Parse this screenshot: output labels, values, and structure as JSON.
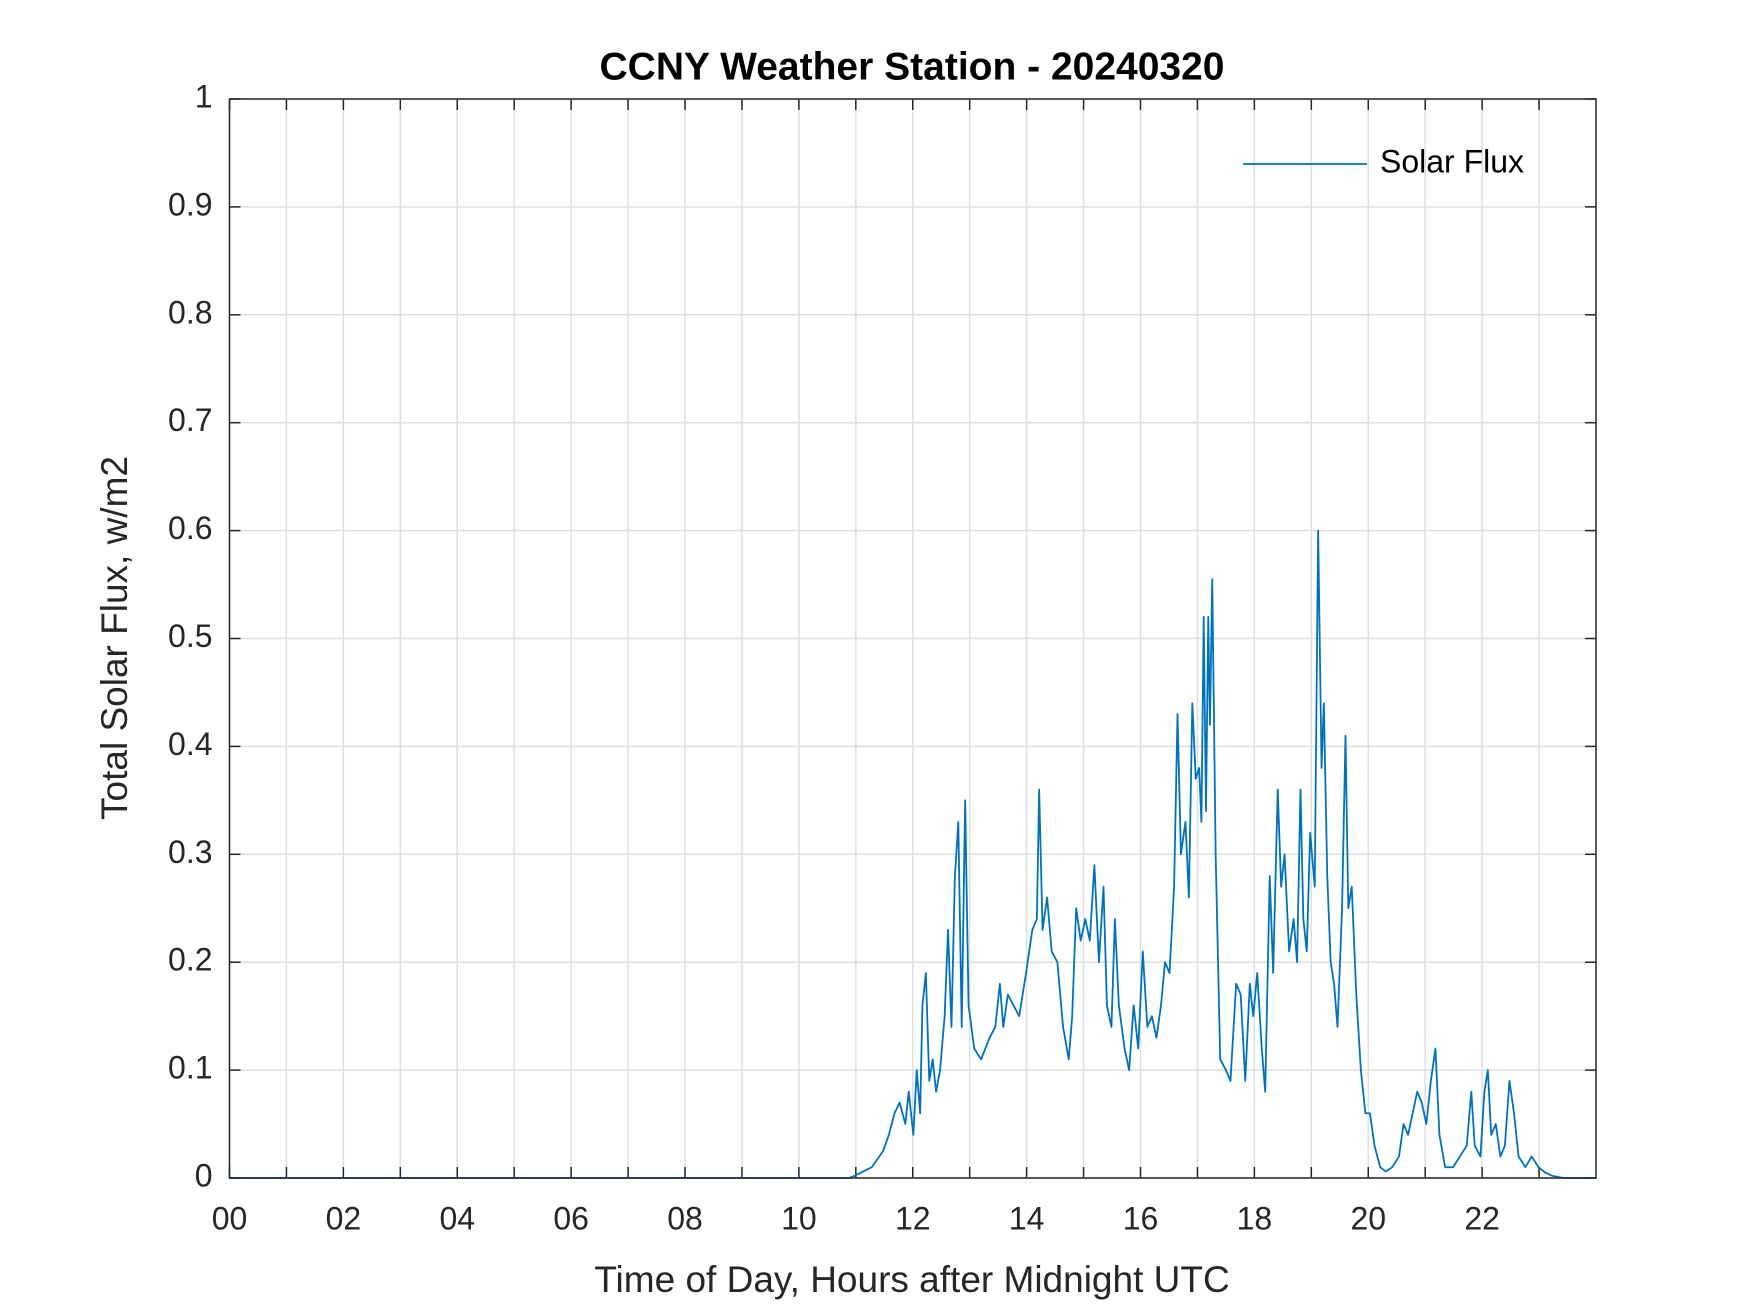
{
  "chart_data": {
    "type": "line",
    "title": "CCNY Weather Station - 20240320",
    "x_label": "Time of Day, Hours after Midnight UTC",
    "y_label": "Total Solar Flux, w/m2",
    "xlim": [
      0,
      24
    ],
    "xticks": [
      {
        "value": 0,
        "label": "00"
      },
      {
        "value": 2,
        "label": "02"
      },
      {
        "value": 4,
        "label": "04"
      },
      {
        "value": 6,
        "label": "06"
      },
      {
        "value": 8,
        "label": "08"
      },
      {
        "value": 10,
        "label": "10"
      },
      {
        "value": 12,
        "label": "12"
      },
      {
        "value": 14,
        "label": "14"
      },
      {
        "value": 16,
        "label": "16"
      },
      {
        "value": 18,
        "label": "18"
      },
      {
        "value": 20,
        "label": "20"
      },
      {
        "value": 22,
        "label": "22"
      }
    ],
    "xminorticks": [
      1,
      3,
      5,
      7,
      9,
      11,
      13,
      15,
      17,
      19,
      21,
      23
    ],
    "ylim": [
      0,
      1
    ],
    "yticks": [
      0,
      0.1,
      0.2,
      0.3,
      0.4,
      0.5,
      0.6,
      0.7,
      0.8,
      0.9,
      1
    ],
    "grid": true,
    "legend": "upper right",
    "x": [
      0,
      10.88,
      10.98,
      11.28,
      11.48,
      11.58,
      11.68,
      11.77,
      11.87,
      11.93,
      12.01,
      12.07,
      12.13,
      12.17,
      12.23,
      12.29,
      12.35,
      12.41,
      12.48,
      12.56,
      12.62,
      12.68,
      12.74,
      12.8,
      12.86,
      12.92,
      12.98,
      13.08,
      13.2,
      13.35,
      13.45,
      13.53,
      13.59,
      13.67,
      13.77,
      13.87,
      13.99,
      14.1,
      14.18,
      14.22,
      14.28,
      14.36,
      14.44,
      14.54,
      14.64,
      14.74,
      14.8,
      14.87,
      14.95,
      15.03,
      15.11,
      15.19,
      15.27,
      15.35,
      15.41,
      15.49,
      15.55,
      15.62,
      15.72,
      15.8,
      15.88,
      15.96,
      16.04,
      16.12,
      16.2,
      16.28,
      16.36,
      16.43,
      16.51,
      16.59,
      16.65,
      16.71,
      16.79,
      16.85,
      16.91,
      16.97,
      17.03,
      17.07,
      17.11,
      17.15,
      17.19,
      17.22,
      17.26,
      17.32,
      17.4,
      17.5,
      17.58,
      17.68,
      17.76,
      17.84,
      17.92,
      17.98,
      18.05,
      18.13,
      18.19,
      18.27,
      18.33,
      18.41,
      18.47,
      18.53,
      18.61,
      18.69,
      18.75,
      18.81,
      18.86,
      18.92,
      18.98,
      19.06,
      19.12,
      19.18,
      19.22,
      19.28,
      19.34,
      19.4,
      19.46,
      19.54,
      19.6,
      19.65,
      19.71,
      19.79,
      19.87,
      19.95,
      20.03,
      20.11,
      20.21,
      20.31,
      20.42,
      20.54,
      20.62,
      20.7,
      20.78,
      20.86,
      20.94,
      21.02,
      21.1,
      21.18,
      21.25,
      21.35,
      21.49,
      21.61,
      21.73,
      21.81,
      21.87,
      21.97,
      22.04,
      22.1,
      22.16,
      22.24,
      22.32,
      22.4,
      22.48,
      22.56,
      22.64,
      22.76,
      22.87,
      22.99,
      23.11,
      23.23,
      23.43,
      23.99
    ],
    "series": [
      {
        "name": "Solar Flux",
        "color": "#0072bd",
        "values": [
          0,
          0,
          0.002,
          0.01,
          0.025,
          0.04,
          0.06,
          0.07,
          0.05,
          0.08,
          0.04,
          0.1,
          0.06,
          0.16,
          0.19,
          0.09,
          0.11,
          0.08,
          0.1,
          0.15,
          0.23,
          0.14,
          0.28,
          0.33,
          0.14,
          0.35,
          0.16,
          0.12,
          0.11,
          0.13,
          0.14,
          0.18,
          0.14,
          0.17,
          0.16,
          0.15,
          0.19,
          0.23,
          0.24,
          0.36,
          0.23,
          0.26,
          0.21,
          0.2,
          0.14,
          0.11,
          0.15,
          0.25,
          0.22,
          0.24,
          0.22,
          0.29,
          0.2,
          0.27,
          0.16,
          0.14,
          0.24,
          0.16,
          0.12,
          0.1,
          0.16,
          0.12,
          0.21,
          0.14,
          0.15,
          0.13,
          0.16,
          0.2,
          0.19,
          0.27,
          0.43,
          0.3,
          0.33,
          0.26,
          0.44,
          0.37,
          0.38,
          0.33,
          0.52,
          0.34,
          0.52,
          0.42,
          0.555,
          0.3,
          0.11,
          0.1,
          0.09,
          0.18,
          0.17,
          0.09,
          0.18,
          0.15,
          0.19,
          0.12,
          0.08,
          0.28,
          0.19,
          0.36,
          0.27,
          0.3,
          0.21,
          0.24,
          0.2,
          0.36,
          0.24,
          0.21,
          0.32,
          0.27,
          0.6,
          0.38,
          0.44,
          0.28,
          0.2,
          0.18,
          0.14,
          0.25,
          0.41,
          0.25,
          0.27,
          0.17,
          0.1,
          0.06,
          0.06,
          0.03,
          0.01,
          0.006,
          0.01,
          0.02,
          0.05,
          0.04,
          0.06,
          0.08,
          0.07,
          0.05,
          0.09,
          0.12,
          0.04,
          0.01,
          0.01,
          0.02,
          0.03,
          0.08,
          0.03,
          0.02,
          0.08,
          0.1,
          0.04,
          0.05,
          0.02,
          0.03,
          0.09,
          0.06,
          0.02,
          0.01,
          0.02,
          0.01,
          0.005,
          0.002,
          0,
          0
        ]
      }
    ]
  }
}
